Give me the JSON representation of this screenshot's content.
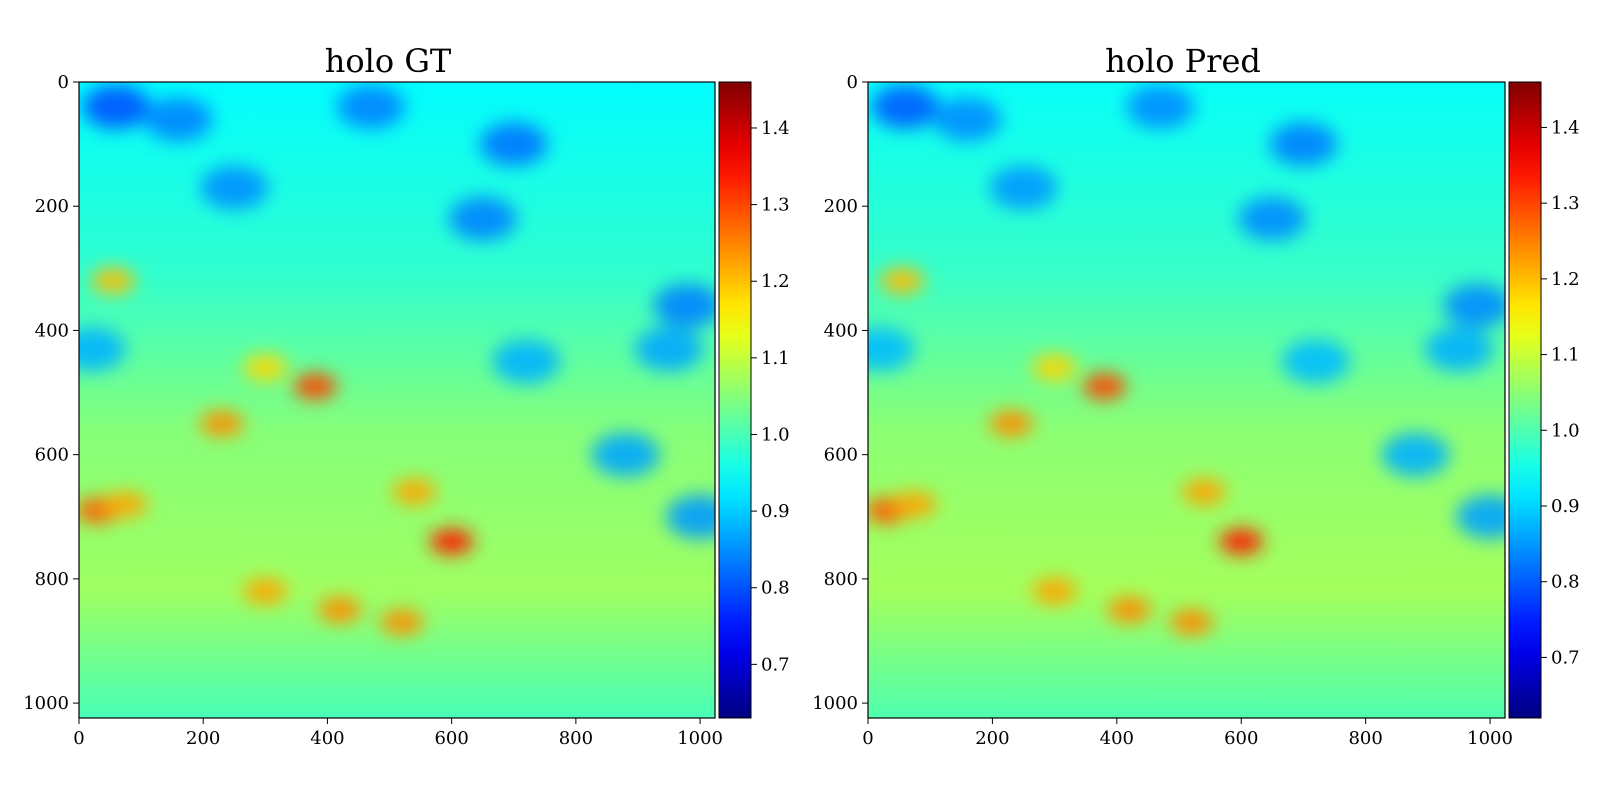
{
  "chart_data": [
    {
      "type": "heatmap",
      "title": "holo GT",
      "xlabel": "",
      "ylabel": "",
      "xlim": [
        0,
        1024
      ],
      "ylim": [
        1024,
        0
      ],
      "x_ticks": [
        "0",
        "200",
        "400",
        "600",
        "800",
        "1000"
      ],
      "y_ticks": [
        "0",
        "200",
        "400",
        "600",
        "800",
        "1000"
      ],
      "colorbar": {
        "colormap": "jet",
        "range": [
          0.63,
          1.46
        ],
        "ticks": [
          "0.7",
          "0.8",
          "0.9",
          "1.0",
          "1.1",
          "1.2",
          "1.3",
          "1.4"
        ]
      },
      "hotspots": [
        {
          "x": 600,
          "y": 740,
          "value": 1.33
        },
        {
          "x": 380,
          "y": 490,
          "value": 1.3
        },
        {
          "x": 420,
          "y": 850,
          "value": 1.24
        },
        {
          "x": 520,
          "y": 870,
          "value": 1.24
        },
        {
          "x": 30,
          "y": 690,
          "value": 1.28
        },
        {
          "x": 75,
          "y": 680,
          "value": 1.22
        },
        {
          "x": 230,
          "y": 550,
          "value": 1.24
        },
        {
          "x": 300,
          "y": 820,
          "value": 1.22
        },
        {
          "x": 540,
          "y": 660,
          "value": 1.22
        },
        {
          "x": 55,
          "y": 320,
          "value": 1.2
        },
        {
          "x": 300,
          "y": 460,
          "value": 1.18
        }
      ],
      "coldspots": [
        {
          "x": 60,
          "y": 40,
          "value": 0.8
        },
        {
          "x": 160,
          "y": 60,
          "value": 0.84
        },
        {
          "x": 250,
          "y": 170,
          "value": 0.85
        },
        {
          "x": 470,
          "y": 40,
          "value": 0.84
        },
        {
          "x": 650,
          "y": 220,
          "value": 0.84
        },
        {
          "x": 700,
          "y": 100,
          "value": 0.83
        },
        {
          "x": 980,
          "y": 360,
          "value": 0.84
        },
        {
          "x": 950,
          "y": 430,
          "value": 0.87
        },
        {
          "x": 1000,
          "y": 700,
          "value": 0.86
        },
        {
          "x": 880,
          "y": 600,
          "value": 0.87
        },
        {
          "x": 720,
          "y": 450,
          "value": 0.88
        },
        {
          "x": 20,
          "y": 430,
          "value": 0.88
        }
      ]
    },
    {
      "type": "heatmap",
      "title": "holo Pred",
      "xlabel": "",
      "ylabel": "",
      "xlim": [
        0,
        1024
      ],
      "ylim": [
        1024,
        0
      ],
      "x_ticks": [
        "0",
        "200",
        "400",
        "600",
        "800",
        "1000"
      ],
      "y_ticks": [
        "0",
        "200",
        "400",
        "600",
        "800",
        "1000"
      ],
      "colorbar": {
        "colormap": "jet",
        "range": [
          0.62,
          1.46
        ],
        "ticks": [
          "0.7",
          "0.8",
          "0.9",
          "1.0",
          "1.1",
          "1.2",
          "1.3",
          "1.4"
        ]
      },
      "hotspots": [
        {
          "x": 600,
          "y": 740,
          "value": 1.33
        },
        {
          "x": 380,
          "y": 490,
          "value": 1.3
        },
        {
          "x": 420,
          "y": 850,
          "value": 1.24
        },
        {
          "x": 520,
          "y": 870,
          "value": 1.24
        },
        {
          "x": 30,
          "y": 690,
          "value": 1.28
        },
        {
          "x": 75,
          "y": 680,
          "value": 1.22
        },
        {
          "x": 230,
          "y": 550,
          "value": 1.24
        },
        {
          "x": 300,
          "y": 820,
          "value": 1.22
        },
        {
          "x": 540,
          "y": 660,
          "value": 1.22
        },
        {
          "x": 55,
          "y": 320,
          "value": 1.2
        },
        {
          "x": 300,
          "y": 460,
          "value": 1.18
        }
      ],
      "coldspots": [
        {
          "x": 60,
          "y": 40,
          "value": 0.8
        },
        {
          "x": 160,
          "y": 60,
          "value": 0.84
        },
        {
          "x": 250,
          "y": 170,
          "value": 0.85
        },
        {
          "x": 470,
          "y": 40,
          "value": 0.84
        },
        {
          "x": 650,
          "y": 220,
          "value": 0.84
        },
        {
          "x": 700,
          "y": 100,
          "value": 0.83
        },
        {
          "x": 980,
          "y": 360,
          "value": 0.84
        },
        {
          "x": 950,
          "y": 430,
          "value": 0.87
        },
        {
          "x": 1000,
          "y": 700,
          "value": 0.86
        },
        {
          "x": 880,
          "y": 600,
          "value": 0.87
        },
        {
          "x": 720,
          "y": 450,
          "value": 0.88
        },
        {
          "x": 20,
          "y": 430,
          "value": 0.88
        }
      ]
    }
  ]
}
